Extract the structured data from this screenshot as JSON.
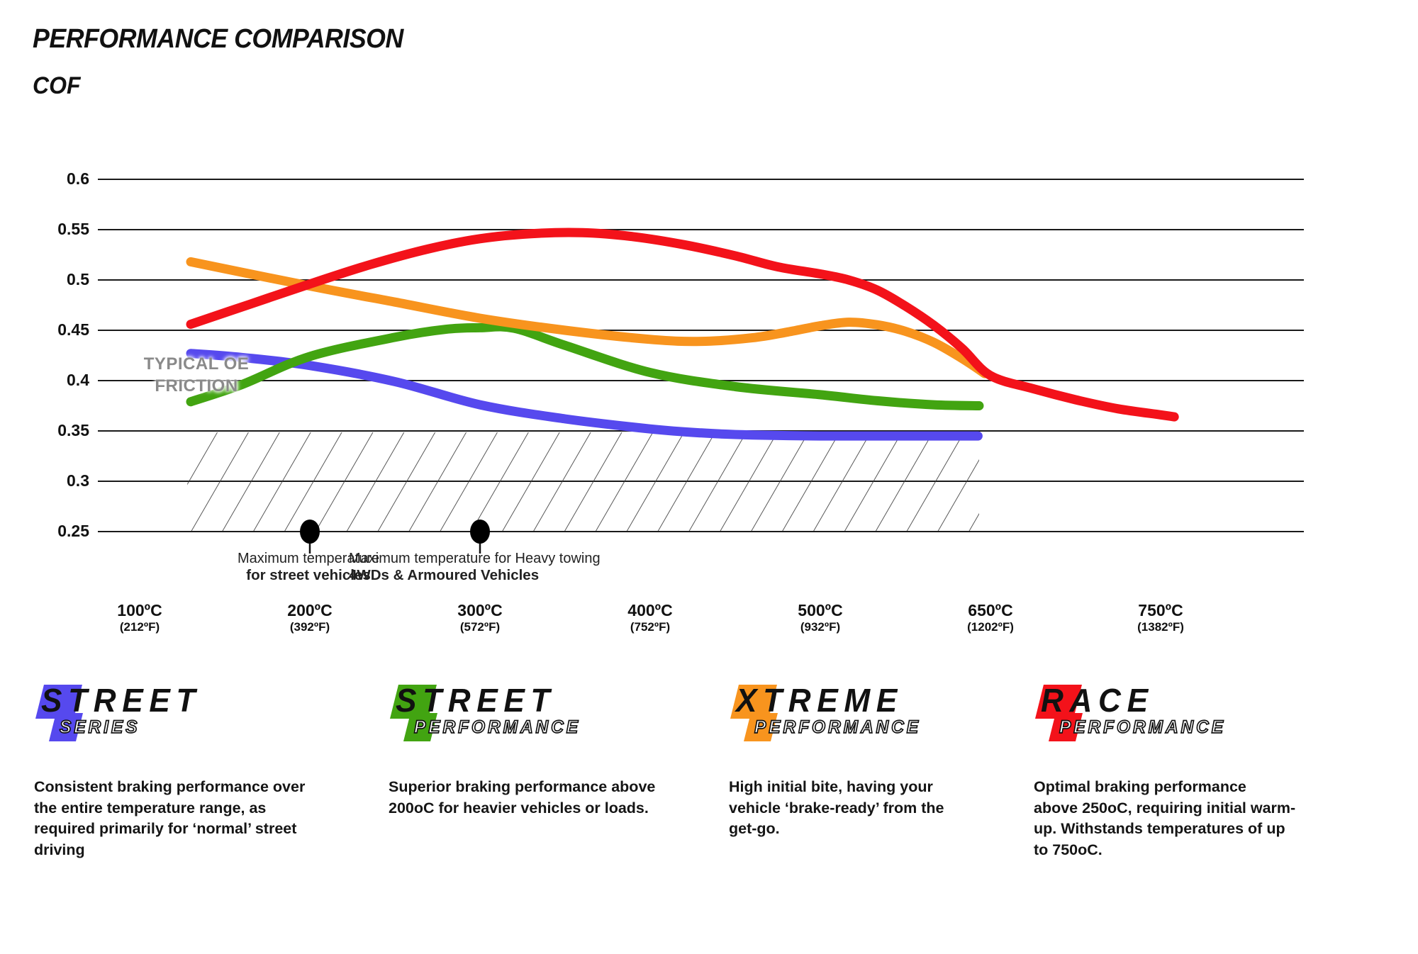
{
  "title": "PERFORMANCE COMPARISON",
  "ylabel": "COF",
  "oe_zone_label": "TYPICAL OE\nFRICTION",
  "annotations": [
    {
      "line1": "Maximum temperature",
      "line2": "for street vehicles"
    },
    {
      "line1": "Maximum temperature for Heavy towing",
      "line2": "4WDs & Armoured Vehicles"
    }
  ],
  "chart_data": {
    "type": "line",
    "title": "PERFORMANCE COMPARISON",
    "ylabel": "COF",
    "ylim": [
      0.25,
      0.6
    ],
    "grid": true,
    "y_ticks": [
      "0.6",
      "0.55",
      "0.5",
      "0.45",
      "0.4",
      "0.35",
      "0.3",
      "0.25"
    ],
    "x_ticks": [
      {
        "c": "100ºC",
        "f": "(212ºF)"
      },
      {
        "c": "200ºC",
        "f": "(392ºF)"
      },
      {
        "c": "300ºC",
        "f": "(572ºF)"
      },
      {
        "c": "400ºC",
        "f": "(752ºF)"
      },
      {
        "c": "500ºC",
        "f": "(932ºF)"
      },
      {
        "c": "650ºC",
        "f": "(1202ºF)"
      },
      {
        "c": "750ºC",
        "f": "(1382ºF)"
      }
    ],
    "x_tick_temps": [
      100,
      200,
      300,
      400,
      500,
      650,
      750
    ],
    "oe_zone": {
      "label": "TYPICAL OE FRICTION",
      "cof_range": [
        0.25,
        0.35
      ],
      "temp_range": [
        128,
        640
      ]
    },
    "markers": [
      {
        "temp": 200,
        "cof": 0.25,
        "note": "Maximum temperature for street vehicles"
      },
      {
        "temp": 300,
        "cof": 0.25,
        "note": "Maximum temperature for Heavy towing 4WDs & Armoured Vehicles"
      }
    ],
    "series": [
      {
        "name": "Street Series",
        "color": "#5649ee",
        "points": [
          [
            130,
            0.427
          ],
          [
            160,
            0.423
          ],
          [
            200,
            0.415
          ],
          [
            250,
            0.399
          ],
          [
            300,
            0.376
          ],
          [
            350,
            0.362
          ],
          [
            400,
            0.352
          ],
          [
            430,
            0.348
          ],
          [
            460,
            0.346
          ],
          [
            500,
            0.345
          ],
          [
            550,
            0.345
          ],
          [
            600,
            0.345
          ],
          [
            639,
            0.345
          ]
        ]
      },
      {
        "name": "Street Performance",
        "color": "#42a411",
        "points": [
          [
            130,
            0.379
          ],
          [
            160,
            0.396
          ],
          [
            200,
            0.424
          ],
          [
            250,
            0.443
          ],
          [
            280,
            0.451
          ],
          [
            300,
            0.4525
          ],
          [
            320,
            0.452
          ],
          [
            350,
            0.435
          ],
          [
            400,
            0.408
          ],
          [
            450,
            0.394
          ],
          [
            500,
            0.386
          ],
          [
            550,
            0.38
          ],
          [
            600,
            0.376
          ],
          [
            640,
            0.375
          ]
        ]
      },
      {
        "name": "Xtreme Performance",
        "color": "#f8941e",
        "points": [
          [
            130,
            0.518
          ],
          [
            200,
            0.494
          ],
          [
            250,
            0.478
          ],
          [
            300,
            0.462
          ],
          [
            350,
            0.45
          ],
          [
            400,
            0.441
          ],
          [
            430,
            0.439
          ],
          [
            460,
            0.4425
          ],
          [
            480,
            0.448
          ],
          [
            500,
            0.4545
          ],
          [
            525,
            0.458
          ],
          [
            550,
            0.4555
          ],
          [
            575,
            0.449
          ],
          [
            600,
            0.438
          ],
          [
            625,
            0.422
          ],
          [
            645,
            0.407
          ]
        ]
      },
      {
        "name": "Race Performance",
        "color": "#f3121a",
        "points": [
          [
            130,
            0.456
          ],
          [
            165,
            0.476
          ],
          [
            200,
            0.496
          ],
          [
            235,
            0.515
          ],
          [
            270,
            0.531
          ],
          [
            300,
            0.541
          ],
          [
            330,
            0.546
          ],
          [
            360,
            0.547
          ],
          [
            390,
            0.543
          ],
          [
            420,
            0.535
          ],
          [
            450,
            0.524
          ],
          [
            475,
            0.513
          ],
          [
            500,
            0.506
          ],
          [
            525,
            0.5
          ],
          [
            550,
            0.49
          ],
          [
            575,
            0.474
          ],
          [
            600,
            0.455
          ],
          [
            625,
            0.432
          ],
          [
            650,
            0.405
          ],
          [
            675,
            0.392
          ],
          [
            700,
            0.381
          ],
          [
            725,
            0.372
          ],
          [
            750,
            0.366
          ],
          [
            758,
            0.364
          ]
        ]
      }
    ]
  },
  "legend": [
    {
      "title": "STREET",
      "subtitle": "SERIES",
      "color": "#5649ee",
      "description": "Consistent braking performance over\nthe entire temperature range, as\nrequired primarily for ‘normal’ street\ndriving"
    },
    {
      "title": "STREET",
      "subtitle": "PERFORMANCE",
      "color": "#42a411",
      "description": "Superior braking performance above\n200oC for heavier vehicles or loads."
    },
    {
      "title": "XTREME",
      "subtitle": "PERFORMANCE",
      "color": "#f8941e",
      "description": "High initial bite, having your\nvehicle ‘brake-ready’ from the\nget-go."
    },
    {
      "title": "RACE",
      "subtitle": "PERFORMANCE",
      "color": "#f3121a",
      "description": "Optimal braking performance\nabove 250oC, requiring initial warm-\nup. Withstands temperatures of up\nto 750oC."
    }
  ]
}
